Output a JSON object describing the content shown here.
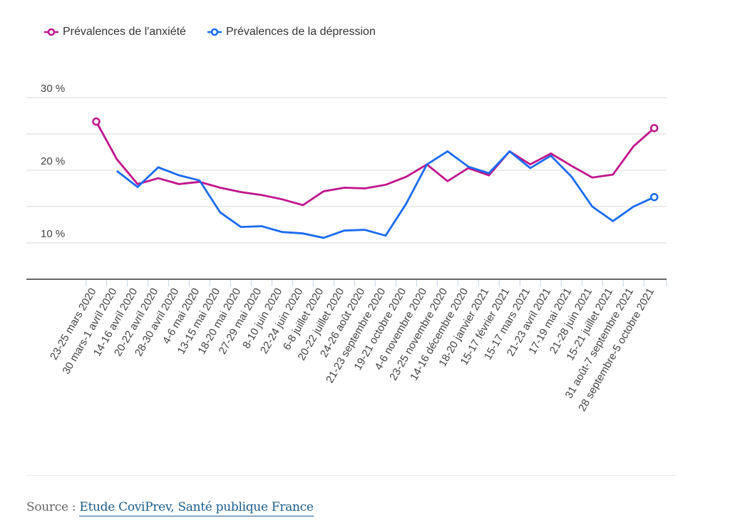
{
  "chart_data": {
    "type": "line",
    "title": "",
    "xlabel": "",
    "ylabel": "",
    "ylim": [
      5,
      30
    ],
    "yticks": [
      10,
      20,
      30
    ],
    "ytick_labels": [
      "10 %",
      "20 %",
      "30 %"
    ],
    "grid": true,
    "legend_position": "top-left",
    "categories": [
      "23-25 mars 2020",
      "30 mars-1 avril 2020",
      "14-16 avril 2020",
      "20-22 avril 2020",
      "28-30 avril 2020",
      "4-6 mai 2020",
      "13-15 mai 2020",
      "18-20 mai 2020",
      "27-29 mai 2020",
      "8-10 juin 2020",
      "22-24 juin 2020",
      "6-8 juillet 2020",
      "20-22 juillet 2020",
      "24-26 août 2020",
      "21-23 septembre 2020",
      "19-21 octobre 2020",
      "4-6 novembre 2020",
      "23-25 novembre 2020",
      "14-16 décembre 2020",
      "18-20 janvier 2021",
      "15-17 février 2021",
      "15-17 mars 2021",
      "21-23 avril 2021",
      "17-19 mai 2021",
      "21-28 juin 2021",
      "15-21 juillet 2021",
      "31 août-7 septembre 2021",
      "28 septembre-5 octobre 2021"
    ],
    "series": [
      {
        "name": "Prévalences de l'anxiété",
        "color": "#c0148c",
        "values": [
          26.7,
          21.5,
          18.1,
          18.9,
          18.1,
          18.4,
          17.6,
          17.0,
          16.6,
          16.0,
          15.2,
          17.1,
          17.6,
          17.5,
          18.0,
          19.1,
          20.8,
          18.5,
          20.3,
          19.3,
          22.6,
          20.8,
          22.3,
          20.6,
          19.0,
          19.4,
          23.3,
          25.8
        ]
      },
      {
        "name": "Prévalences de la dépression",
        "color": "#1a6bf0",
        "values": [
          null,
          19.9,
          17.7,
          20.4,
          19.3,
          18.6,
          14.2,
          12.2,
          12.3,
          11.5,
          11.3,
          10.7,
          11.7,
          11.8,
          11.0,
          15.4,
          20.8,
          22.6,
          20.5,
          19.6,
          22.6,
          20.3,
          22.0,
          19.1,
          15.0,
          13.0,
          15.0,
          16.3
        ]
      }
    ]
  },
  "footer": {
    "source_prefix": "Source : ",
    "source_link": "Etude CoviPrev, Santé publique France"
  }
}
